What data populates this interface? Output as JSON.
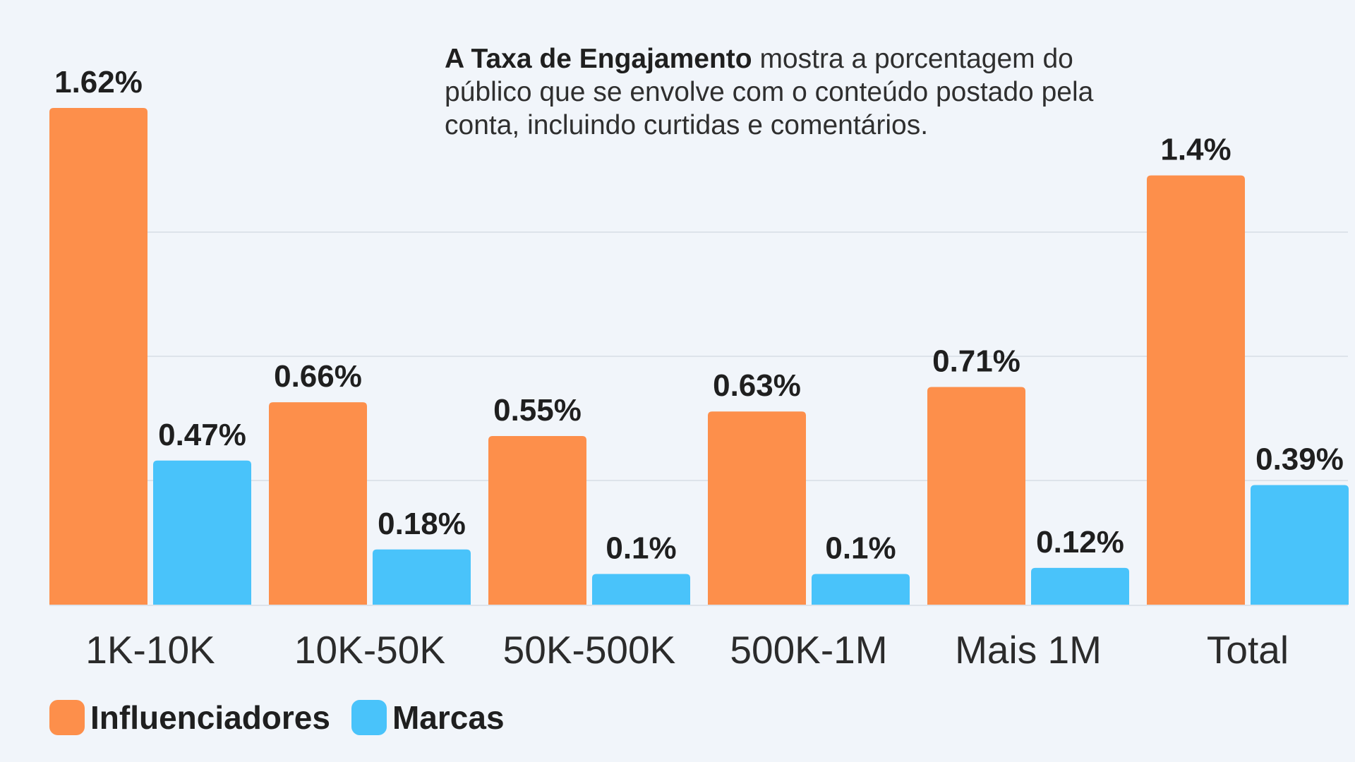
{
  "colors": {
    "influenciadores": "#fd8f4b",
    "marcas": "#49c3fa",
    "grid": "#dde3ea",
    "label": "#1f1f1f",
    "category": "#2b2b2b"
  },
  "description": {
    "bold": "A Taxa de Engajamento",
    "rest": " mostra a porcentagem do público que se envolve com o conteúdo postado pela conta, incluindo curtidas e comentários."
  },
  "legend": {
    "influenciadores": "Influenciadores",
    "marcas": "Marcas"
  },
  "chart_data": {
    "type": "bar",
    "title": "",
    "xlabel": "",
    "ylabel": "",
    "ylim": [
      0,
      1.62
    ],
    "grid": true,
    "legend_position": "bottom-left",
    "categories": [
      "1K-10K",
      "10K-50K",
      "50K-500K",
      "500K-1M",
      "Mais 1M",
      "Total"
    ],
    "series": [
      {
        "name": "Influenciadores",
        "values": [
          1.62,
          0.66,
          0.55,
          0.63,
          0.71,
          1.4
        ],
        "labels": [
          "1.62%",
          "0.66%",
          "0.55%",
          "0.63%",
          "0.71%",
          "1.4%"
        ]
      },
      {
        "name": "Marcas",
        "values": [
          0.47,
          0.18,
          0.1,
          0.1,
          0.12,
          0.39
        ],
        "labels": [
          "0.47%",
          "0.18%",
          "0.1%",
          "0.1%",
          "0.12%",
          "0.39%"
        ]
      }
    ]
  }
}
